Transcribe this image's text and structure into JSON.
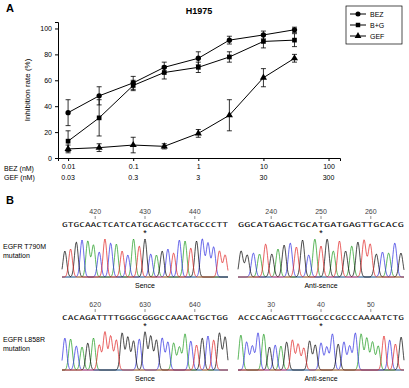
{
  "chart_data": {
    "type": "line",
    "title": "H1975",
    "panel_label": "A",
    "y_label": "Inhibition rate (%)",
    "x_label": "BEZ (nM)",
    "x2_label": "GEF (nM)",
    "log": "x",
    "x": [
      0.01,
      0.03,
      0.1,
      0.3,
      1,
      3,
      10,
      30
    ],
    "xlim": [
      0.007,
      150
    ],
    "xticks": [
      0.01,
      0.1,
      1,
      10,
      100
    ],
    "xticks2": [
      {
        "value": 0.01,
        "label": "0.03"
      },
      {
        "value": 0.1,
        "label": "0.3"
      },
      {
        "value": 1,
        "label": "3"
      },
      {
        "value": 10,
        "label": "30"
      },
      {
        "value": 100,
        "label": "300"
      }
    ],
    "ylim": [
      0,
      105
    ],
    "yticks": [
      0,
      20,
      40,
      60,
      80,
      100
    ],
    "legend": "top-right",
    "series": [
      {
        "name": "BEZ",
        "color": "#000000",
        "marker": "circle",
        "values": [
          35,
          48,
          58,
          70,
          77,
          91,
          95,
          99
        ],
        "errors": [
          10,
          7,
          5,
          4,
          5,
          3,
          3,
          2
        ]
      },
      {
        "name": "B+G",
        "color": "#000000",
        "marker": "square",
        "values": [
          13,
          31,
          56,
          66,
          70,
          78,
          90,
          91
        ],
        "errors": [
          8,
          14,
          4,
          5,
          4,
          4,
          5,
          5
        ]
      },
      {
        "name": "GEF",
        "color": "#000000",
        "marker": "triangle",
        "values": [
          7,
          8,
          10,
          9,
          19,
          33,
          62,
          77
        ],
        "errors": [
          3,
          3,
          6,
          2,
          3,
          12,
          7,
          3
        ]
      }
    ]
  },
  "panel_b": {
    "label": "B",
    "mutation_mark": "*",
    "rows": [
      {
        "label": [
          "EGFR T790M",
          "mutation"
        ],
        "traces": [
          {
            "strand": "Sence",
            "ticks": [
              420,
              430,
              440
            ],
            "sequence": "GTGCAACTCATCATGCAGCTCATGCCCTT"
          },
          {
            "strand": "Anti-sence",
            "ticks": [
              240,
              250,
              260
            ],
            "sequence": "GGCATGAGCTGCATGATGAGTTGCACG"
          }
        ]
      },
      {
        "label": [
          "EGFR L858R",
          "mutation"
        ],
        "traces": [
          {
            "strand": "Sence",
            "ticks": [
              620,
              630,
              640
            ],
            "sequence": "CACAGATTTTGGGCGGGCCAAACTGCTGG"
          },
          {
            "strand": "Anti-sence",
            "ticks": [
              30,
              40,
              50
            ],
            "sequence": "ACCCAGCAGTTTGGCCCGCCCAAAATCTG"
          }
        ]
      }
    ]
  }
}
